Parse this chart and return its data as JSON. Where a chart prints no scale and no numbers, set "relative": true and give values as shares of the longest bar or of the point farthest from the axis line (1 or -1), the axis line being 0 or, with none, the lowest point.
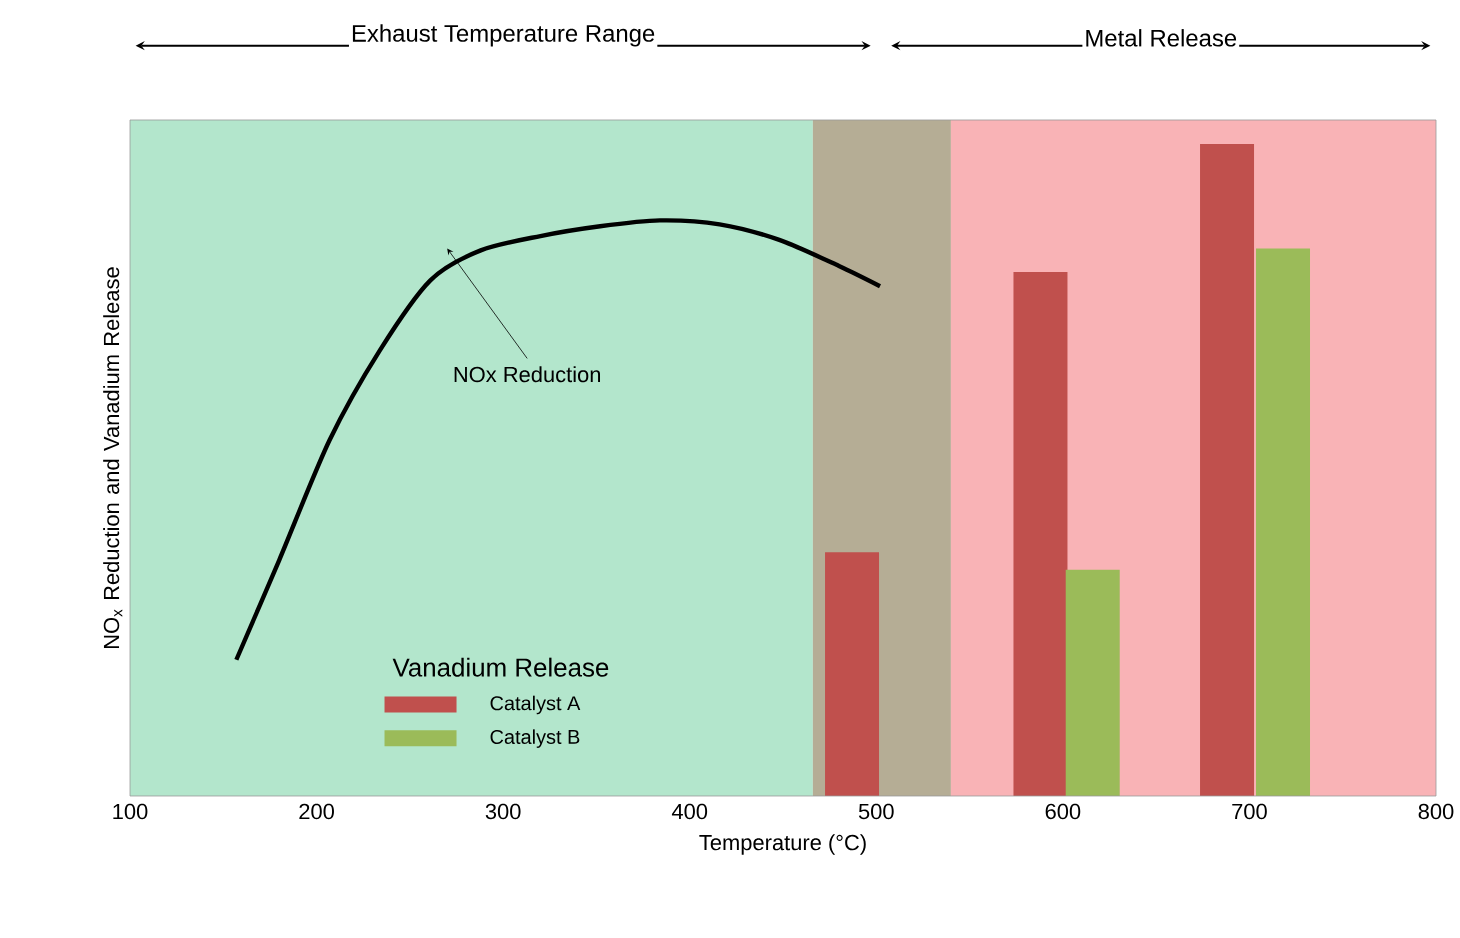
{
  "chart_data": {
    "type": "bar",
    "relative": true,
    "xlabel": "Temperature (°C)",
    "ylabel": "NO$_{x}$ Reduction and Vanadium Release",
    "xlim": [
      100,
      800
    ],
    "xticks": [
      100,
      200,
      300,
      400,
      500,
      600,
      700,
      800
    ],
    "legend_title": "Vanadium Release",
    "legend": "bottom left",
    "marker": "none",
    "series": [
      {
        "type": "line",
        "line_style": "solid",
        "color": "#000000",
        "x": [
          157,
          180,
          207,
          234,
          261,
          288,
          320,
          352,
          384,
          416,
          448,
          480,
          502
        ],
        "values": [
          0.209,
          0.362,
          0.546,
          0.684,
          0.791,
          0.837,
          0.859,
          0.874,
          0.883,
          0.877,
          0.853,
          0.813,
          0.782
        ]
      },
      {
        "name": "Catalyst A",
        "color": "#c0504d",
        "x": [
          487,
          588,
          688
        ],
        "values": [
          0.374,
          0.804,
          1.0
        ]
      },
      {
        "name": "Catalyst B",
        "color": "#9bbb59",
        "x": [
          616,
          718
        ],
        "values": [
          0.347,
          0.84
        ]
      }
    ],
    "bands": [
      {
        "axis": "x",
        "from": 100,
        "to": 466,
        "color": "#b3e6cc"
      },
      {
        "axis": "x",
        "from": 466,
        "to": 540,
        "color": "#b5ad95"
      },
      {
        "axis": "x",
        "from": 540,
        "to": 800,
        "color": "#f9b3b6"
      }
    ],
    "annotations": [
      "Exhaust Temperature Range",
      "Metal Release",
      {
        "text": "NOx Reduction",
        "x": 270,
        "y": 0.84
      }
    ]
  }
}
